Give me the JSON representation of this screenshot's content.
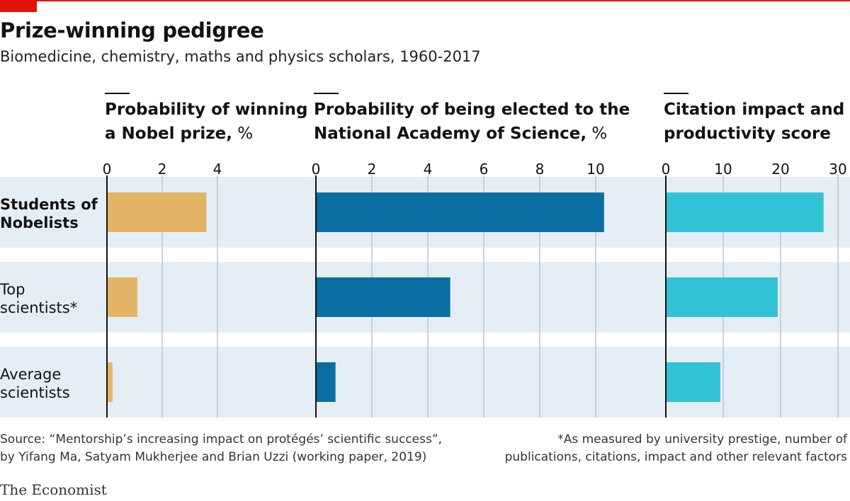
{
  "title": "Prize-winning pedigree",
  "subtitle": "Biomedicine, chemistry, maths and physics scholars, 1960-2017",
  "colors": {
    "accent": "#e3120b",
    "band": "#e6eef5",
    "grid": "#b7c5d1",
    "nobel": "#e3b466",
    "nas": "#0b6ea1",
    "citation": "#32c2d6"
  },
  "chart_data": {
    "type": "bar",
    "orientation": "horizontal",
    "categories": [
      [
        "Students of",
        "Nobelists"
      ],
      [
        "Top",
        "scientists*"
      ],
      [
        "Average",
        "scientists"
      ]
    ],
    "panels": [
      {
        "name": "nobel",
        "title": [
          "Probability of winning",
          "a Nobel prize,"
        ],
        "unit": "%",
        "xlim": [
          0,
          5
        ],
        "ticks": [
          0,
          2,
          4
        ],
        "values": [
          3.6,
          1.1,
          0.2
        ]
      },
      {
        "name": "nas",
        "title": [
          "Probability of being elected to the",
          "National Academy of Science,"
        ],
        "unit": "%",
        "xlim": [
          0,
          12
        ],
        "ticks": [
          0,
          2,
          4,
          6,
          8,
          10
        ],
        "values": [
          10.3,
          4.8,
          0.7
        ]
      },
      {
        "name": "citation",
        "title": [
          "Citation impact and",
          "productivity score"
        ],
        "unit": "",
        "xlim": [
          0,
          30
        ],
        "ticks": [
          0,
          10,
          20,
          30
        ],
        "values": [
          27.5,
          19.5,
          9.5
        ]
      }
    ]
  },
  "footer": {
    "source_line1": "Source: “Mentorship’s increasing impact on protégés’ scientific success”,",
    "source_line2": "by Yifang Ma, Satyam Mukherjee and Brian Uzzi (working paper, 2019)",
    "note_line1": "*As measured by university prestige, number of",
    "note_line2": "publications, citations, impact and other relevant factors"
  },
  "brand": "The Economist"
}
